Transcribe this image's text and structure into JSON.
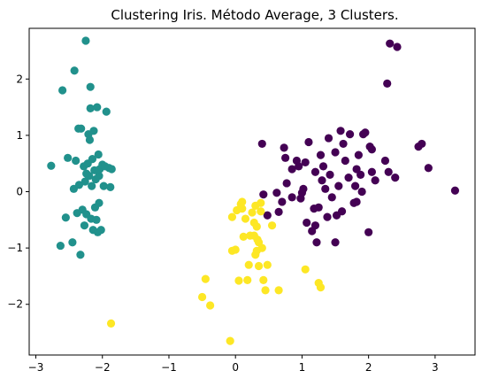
{
  "chart_data": {
    "type": "scatter",
    "title": "Clustering Iris. Método Average, 3 Clusters.",
    "xlabel": "",
    "ylabel": "",
    "xlim": [
      -3.1,
      3.6
    ],
    "ylim": [
      -2.9,
      2.9
    ],
    "xticks": [
      -3,
      -2,
      -1,
      0,
      1,
      2,
      3
    ],
    "yticks": [
      -2,
      -1,
      0,
      1,
      2
    ],
    "xtick_labels": [
      "−3",
      "−2",
      "−1",
      "0",
      "1",
      "2",
      "3"
    ],
    "ytick_labels": [
      "−2",
      "−1",
      "0",
      "1",
      "2"
    ],
    "grid": false,
    "legend": false,
    "series": [
      {
        "color": "#440154",
        "points": [
          [
            0.4,
            0.85
          ],
          [
            0.42,
            -0.05
          ],
          [
            0.48,
            -0.42
          ],
          [
            0.62,
            -0.02
          ],
          [
            0.65,
            -0.36
          ],
          [
            0.7,
            -0.18
          ],
          [
            0.73,
            0.78
          ],
          [
            0.75,
            0.6
          ],
          [
            0.77,
            0.15
          ],
          [
            0.85,
            -0.1
          ],
          [
            0.92,
            0.55
          ],
          [
            0.95,
            0.45
          ],
          [
            0.98,
            -0.12
          ],
          [
            1.0,
            -0.02
          ],
          [
            1.02,
            0.05
          ],
          [
            1.05,
            0.52
          ],
          [
            1.07,
            -0.55
          ],
          [
            1.1,
            0.88
          ],
          [
            1.15,
            -0.7
          ],
          [
            1.18,
            -0.3
          ],
          [
            1.2,
            -0.6
          ],
          [
            1.22,
            -0.9
          ],
          [
            1.28,
            0.65
          ],
          [
            1.3,
            0.2
          ],
          [
            1.32,
            0.45
          ],
          [
            1.35,
            0.05
          ],
          [
            1.38,
            -0.45
          ],
          [
            1.4,
            0.95
          ],
          [
            1.42,
            0.3
          ],
          [
            1.45,
            -0.1
          ],
          [
            1.5,
            0.7
          ],
          [
            1.52,
            -0.42
          ],
          [
            1.55,
            0.1
          ],
          [
            1.58,
            1.08
          ],
          [
            1.6,
            -0.35
          ],
          [
            1.65,
            0.55
          ],
          [
            1.7,
            0.25
          ],
          [
            1.72,
            1.02
          ],
          [
            1.78,
            -0.2
          ],
          [
            1.8,
            0.1
          ],
          [
            1.82,
            0.4
          ],
          [
            1.85,
            0.65
          ],
          [
            1.88,
            0.3
          ],
          [
            1.9,
            0.0
          ],
          [
            1.92,
            1.02
          ],
          [
            1.95,
            1.05
          ],
          [
            2.0,
            -0.72
          ],
          [
            2.02,
            0.8
          ],
          [
            2.05,
            0.35
          ],
          [
            2.1,
            0.2
          ],
          [
            2.25,
            0.55
          ],
          [
            2.3,
            0.35
          ],
          [
            2.4,
            0.25
          ],
          [
            2.75,
            0.8
          ],
          [
            2.8,
            0.85
          ],
          [
            2.9,
            0.42
          ],
          [
            3.3,
            0.02
          ],
          [
            1.5,
            -0.9
          ],
          [
            1.2,
            0.35
          ],
          [
            1.62,
            0.85
          ],
          [
            2.28,
            1.92
          ],
          [
            2.32,
            2.63
          ],
          [
            2.43,
            2.57
          ],
          [
            1.25,
            -0.28
          ],
          [
            0.85,
            0.4
          ],
          [
            1.82,
            -0.18
          ],
          [
            2.05,
            0.75
          ]
        ]
      },
      {
        "color": "#21918c",
        "points": [
          [
            -2.77,
            0.46
          ],
          [
            -2.63,
            -0.96
          ],
          [
            -2.6,
            1.8
          ],
          [
            -2.55,
            -0.46
          ],
          [
            -2.52,
            0.6
          ],
          [
            -2.45,
            -0.9
          ],
          [
            -2.43,
            0.05
          ],
          [
            -2.42,
            2.15
          ],
          [
            -2.4,
            0.55
          ],
          [
            -2.38,
            -0.38
          ],
          [
            -2.36,
            1.12
          ],
          [
            -2.35,
            0.12
          ],
          [
            -2.33,
            -1.12
          ],
          [
            -2.32,
            1.12
          ],
          [
            -2.3,
            -0.32
          ],
          [
            -2.28,
            0.45
          ],
          [
            -2.27,
            -0.6
          ],
          [
            -2.26,
            0.18
          ],
          [
            -2.25,
            2.68
          ],
          [
            -2.24,
            -0.4
          ],
          [
            -2.22,
            0.5
          ],
          [
            -2.21,
            1.02
          ],
          [
            -2.2,
            0.28
          ],
          [
            -2.19,
            0.92
          ],
          [
            -2.18,
            1.48
          ],
          [
            -2.18,
            1.86
          ],
          [
            -2.17,
            -0.48
          ],
          [
            -2.16,
            0.1
          ],
          [
            -2.15,
            0.58
          ],
          [
            -2.14,
            -0.68
          ],
          [
            -2.13,
            1.08
          ],
          [
            -2.12,
            0.38
          ],
          [
            -2.11,
            -0.28
          ],
          [
            -2.1,
            0.22
          ],
          [
            -2.09,
            -0.5
          ],
          [
            -2.08,
            1.5
          ],
          [
            -2.07,
            -0.72
          ],
          [
            -2.06,
            0.66
          ],
          [
            -2.05,
            0.28
          ],
          [
            -2.04,
            0.4
          ],
          [
            -2.02,
            -0.68
          ],
          [
            -2.0,
            0.48
          ],
          [
            -1.98,
            0.1
          ],
          [
            -1.96,
            0.45
          ],
          [
            -1.94,
            1.42
          ],
          [
            -1.9,
            0.42
          ],
          [
            -1.88,
            0.08
          ],
          [
            -1.86,
            0.4
          ],
          [
            -2.24,
            0.32
          ],
          [
            -2.05,
            -0.2
          ]
        ]
      },
      {
        "color": "#fde725",
        "points": [
          [
            -1.87,
            -2.34
          ],
          [
            -0.5,
            -1.87
          ],
          [
            -0.45,
            -1.55
          ],
          [
            -0.38,
            -2.02
          ],
          [
            -0.08,
            -2.65
          ],
          [
            -0.05,
            -0.45
          ],
          [
            -0.05,
            -1.05
          ],
          [
            0.0,
            -1.03
          ],
          [
            0.02,
            -0.33
          ],
          [
            0.05,
            -1.58
          ],
          [
            0.08,
            -0.22
          ],
          [
            0.1,
            -0.3
          ],
          [
            0.1,
            -0.18
          ],
          [
            0.15,
            -0.48
          ],
          [
            0.18,
            -1.57
          ],
          [
            0.2,
            -1.3
          ],
          [
            0.22,
            -0.78
          ],
          [
            0.25,
            -0.37
          ],
          [
            0.28,
            -0.78
          ],
          [
            0.3,
            -0.25
          ],
          [
            0.3,
            -1.12
          ],
          [
            0.32,
            -0.62
          ],
          [
            0.33,
            -0.85
          ],
          [
            0.35,
            -1.32
          ],
          [
            0.35,
            -0.9
          ],
          [
            0.38,
            -0.35
          ],
          [
            0.4,
            -1.0
          ],
          [
            0.42,
            -1.57
          ],
          [
            0.45,
            -1.75
          ],
          [
            0.55,
            -0.6
          ],
          [
            0.65,
            -1.75
          ],
          [
            1.05,
            -1.38
          ],
          [
            1.25,
            -1.62
          ],
          [
            1.28,
            -1.7
          ],
          [
            0.28,
            -0.55
          ],
          [
            0.12,
            -0.8
          ],
          [
            0.48,
            -1.3
          ],
          [
            0.38,
            -0.2
          ],
          [
            0.32,
            -1.05
          ]
        ]
      }
    ]
  }
}
